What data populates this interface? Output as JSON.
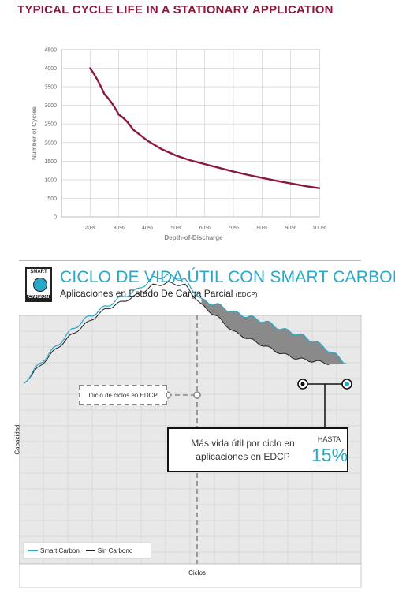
{
  "top_chart": {
    "title": "TYPICAL CYCLE LIFE IN A STATIONARY APPLICATION"
  },
  "chart_data": [
    {
      "type": "line",
      "title": "TYPICAL CYCLE LIFE IN A STATIONARY APPLICATION",
      "xlabel": "Depth-of-Discharge",
      "ylabel": "Number of Cycles",
      "x_ticks": [
        "20%",
        "30%",
        "40%",
        "50%",
        "60%",
        "70%",
        "80%",
        "90%",
        "100%"
      ],
      "y_ticks": [
        "0",
        "500",
        "1000",
        "1500",
        "2000",
        "2500",
        "3000",
        "3500",
        "4000",
        "4500"
      ],
      "xlim": [
        10,
        100
      ],
      "ylim": [
        0,
        4500
      ],
      "grid": true,
      "series": [
        {
          "x": [
            20,
            25,
            30,
            35,
            40,
            45,
            50,
            55,
            60,
            65,
            70,
            75,
            80,
            85,
            90,
            95,
            100
          ],
          "y": [
            4000,
            3300,
            2750,
            2350,
            2050,
            1820,
            1650,
            1520,
            1420,
            1320,
            1220,
            1130,
            1050,
            970,
            900,
            830,
            770
          ],
          "color": "#8b1a3a"
        }
      ]
    },
    {
      "type": "line",
      "title": "CICLO DE VIDA ÚTIL CON SMART CARBON",
      "subtitle": "Aplicaciones en Estado De Carga Parcial",
      "subtitle_small": "(EDCP)",
      "xlabel": "Ciclos",
      "ylabel": "Capacidad",
      "grid": true,
      "legend_position": "bottom-left",
      "series": [
        {
          "name": "Smart Carbon",
          "color": "#2aa7c9",
          "x": [
            0,
            5,
            10,
            15,
            20,
            25,
            30,
            35,
            40,
            45,
            50,
            55,
            60,
            65,
            70,
            75,
            80,
            85,
            90,
            95,
            100
          ],
          "y": [
            40,
            48,
            55,
            62,
            67,
            71,
            75,
            78,
            83,
            84,
            82,
            74,
            72,
            69,
            67,
            65,
            62,
            60,
            57,
            53,
            48
          ]
        },
        {
          "name": "Sin Carbono",
          "color": "#222222",
          "x": [
            0,
            5,
            10,
            15,
            20,
            25,
            30,
            35,
            40,
            45,
            50,
            55,
            60,
            65,
            70,
            75,
            80,
            85,
            90,
            95
          ],
          "y": [
            40,
            47,
            54,
            60,
            65,
            70,
            73,
            76,
            80,
            81,
            80,
            72,
            67,
            61,
            58,
            55,
            52,
            50,
            49,
            48
          ]
        }
      ]
    }
  ],
  "bottom_chart": {
    "title": "CICLO DE VIDA ÚTIL CON SMART CARBON",
    "subtitle": "Aplicaciones en Estado De Carga Parcial",
    "subtitle_small": "(EDCP)",
    "logo_top": "SMART",
    "logo_bottom": "CARBON",
    "start_label": "Inicio de ciclos en EDCP",
    "callout_text": "Más vida útil por ciclo en aplicaciones en EDCP",
    "callout_hasta": "HASTA",
    "callout_pct": "15%",
    "legend_smart": "Smart Carbon",
    "legend_sin": "Sin Carbono",
    "ylabel": "Capacidad",
    "xlabel": "Ciclos"
  },
  "colors": {
    "maroon": "#8b1a3a",
    "cyan": "#2aa7c9",
    "grid_bg": "#e8e8e8",
    "fill": "#8a8a8a"
  }
}
